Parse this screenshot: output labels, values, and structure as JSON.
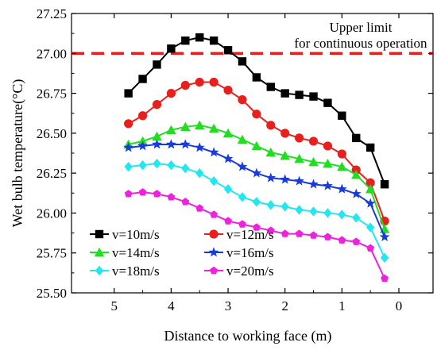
{
  "chart_data": {
    "type": "line",
    "xlabel": "Distance to working face (m)",
    "ylabel": "Wet bulb temperature(°C)",
    "xlim": [
      5.75,
      -0.6
    ],
    "ylim": [
      25.5,
      27.25
    ],
    "x_ticks": [
      "5",
      "4",
      "3",
      "2",
      "1",
      "0"
    ],
    "x_tick_values": [
      5,
      4,
      3,
      2,
      1,
      0
    ],
    "y_ticks": [
      "25.50",
      "25.75",
      "26.00",
      "26.25",
      "26.50",
      "26.75",
      "27.00",
      "27.25"
    ],
    "y_tick_values": [
      25.5,
      25.75,
      26.0,
      26.25,
      26.5,
      26.75,
      27.0,
      27.25
    ],
    "x": [
      4.75,
      4.5,
      4.25,
      4.0,
      3.75,
      3.5,
      3.25,
      3.0,
      2.75,
      2.5,
      2.25,
      2.0,
      1.75,
      1.5,
      1.25,
      1.0,
      0.75,
      0.5,
      0.25
    ],
    "series": [
      {
        "name": "v=10m/s",
        "color": "#000000",
        "marker": "square",
        "values": [
          26.75,
          26.84,
          26.93,
          27.03,
          27.08,
          27.1,
          27.08,
          27.02,
          26.95,
          26.85,
          26.79,
          26.75,
          26.74,
          26.73,
          26.69,
          26.61,
          26.47,
          26.41,
          26.18
        ]
      },
      {
        "name": "v=12m/s",
        "color": "#e8201d",
        "marker": "circle",
        "values": [
          26.56,
          26.61,
          26.68,
          26.75,
          26.8,
          26.82,
          26.82,
          26.77,
          26.71,
          26.62,
          26.55,
          26.5,
          26.47,
          26.45,
          26.42,
          26.37,
          26.27,
          26.19,
          25.95
        ]
      },
      {
        "name": "v=14m/s",
        "color": "#22dd22",
        "marker": "triangle",
        "values": [
          26.43,
          26.45,
          26.48,
          26.52,
          26.54,
          26.55,
          26.53,
          26.5,
          26.46,
          26.42,
          26.38,
          26.36,
          26.34,
          26.32,
          26.31,
          26.29,
          26.24,
          26.15,
          25.9
        ]
      },
      {
        "name": "v=16m/s",
        "color": "#1a3cd6",
        "marker": "star",
        "values": [
          26.41,
          26.42,
          26.43,
          26.43,
          26.43,
          26.41,
          26.38,
          26.34,
          26.29,
          26.25,
          26.22,
          26.21,
          26.2,
          26.18,
          26.17,
          26.15,
          26.12,
          26.06,
          25.85
        ]
      },
      {
        "name": "v=18m/s",
        "color": "#22e6f0",
        "marker": "diamond",
        "values": [
          26.29,
          26.3,
          26.31,
          26.3,
          26.28,
          26.25,
          26.2,
          26.15,
          26.1,
          26.07,
          26.05,
          26.04,
          26.02,
          26.01,
          26.0,
          25.99,
          25.97,
          25.91,
          25.72
        ]
      },
      {
        "name": "v=20m/s",
        "color": "#ee22dd",
        "marker": "pentagon",
        "values": [
          26.12,
          26.13,
          26.12,
          26.1,
          26.07,
          26.03,
          25.99,
          25.95,
          25.93,
          25.91,
          25.89,
          25.87,
          25.87,
          25.86,
          25.85,
          25.83,
          25.82,
          25.78,
          25.59
        ]
      }
    ],
    "reference_line": {
      "value": 27.0,
      "color": "#e8201d",
      "style": "dashed",
      "label_lines": [
        "Upper limit",
        "for continuous operation"
      ]
    },
    "grid": false,
    "legend": "bottom-left"
  }
}
